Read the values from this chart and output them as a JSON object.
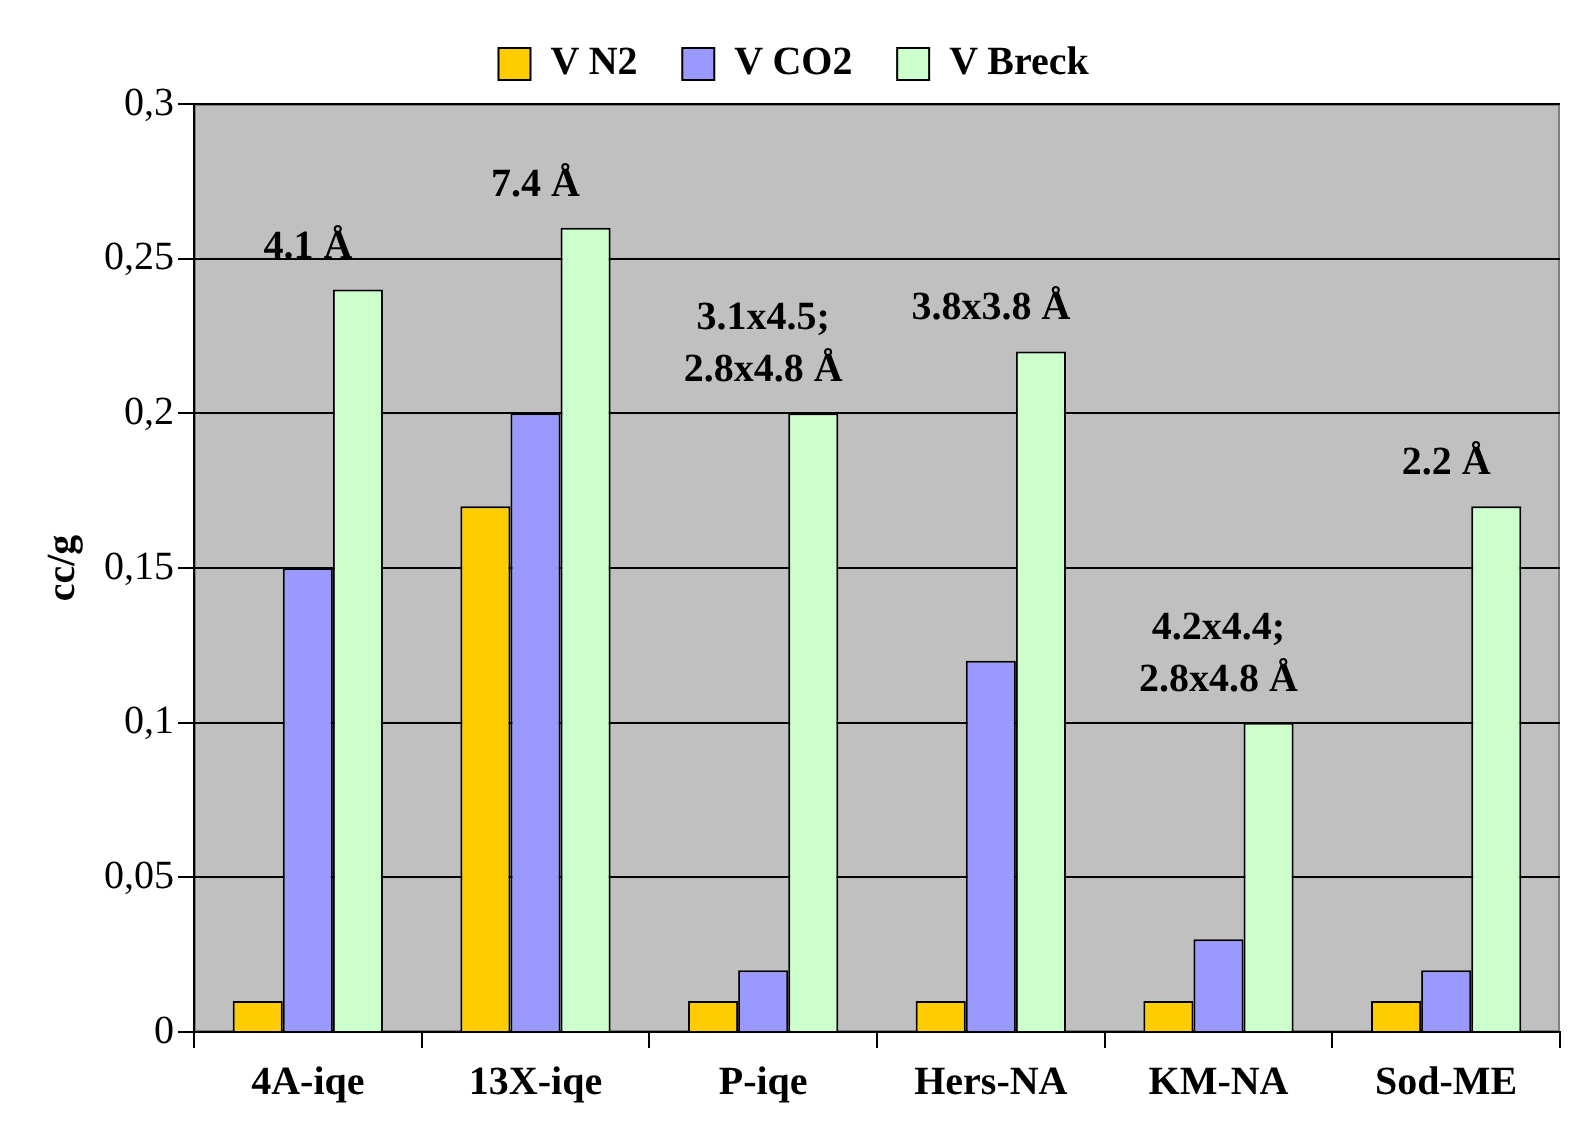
{
  "chart_data": {
    "type": "bar",
    "ylabel": "cc/g",
    "categories": [
      "4A-iqe",
      "13X-iqe",
      "P-iqe",
      "Hers-NA",
      "KM-NA",
      "Sod-ME"
    ],
    "series": [
      {
        "name": "V N2",
        "color": "#ffcc00",
        "values": [
          0.01,
          0.17,
          0.01,
          0.01,
          0.01,
          0.01
        ]
      },
      {
        "name": "V CO2",
        "color": "#9999ff",
        "values": [
          0.15,
          0.2,
          0.02,
          0.12,
          0.03,
          0.02
        ]
      },
      {
        "name": "V Breck",
        "color": "#ccffcc",
        "values": [
          0.24,
          0.26,
          0.2,
          0.22,
          0.1,
          0.17
        ]
      }
    ],
    "ylim": [
      0,
      0.3
    ],
    "yticks": [
      0,
      {
        "value": 0.05,
        "label": "0,05"
      },
      {
        "value": 0.1,
        "label": "0,1"
      },
      {
        "value": 0.15,
        "label": "0,15"
      },
      {
        "value": 0.2,
        "label": "0,2"
      },
      {
        "value": 0.25,
        "label": "0,25"
      },
      {
        "value": 0.3,
        "label": "0,3"
      }
    ],
    "grid": "y",
    "legend": "top",
    "annotations": [
      "4.1 Å",
      "7.4 Å",
      "3.1x4.5;\n2.8x4.8 Å",
      "3.8x3.8 Å",
      "4.2x4.4;\n2.8x4.8 Å",
      "2.2 Å"
    ]
  }
}
